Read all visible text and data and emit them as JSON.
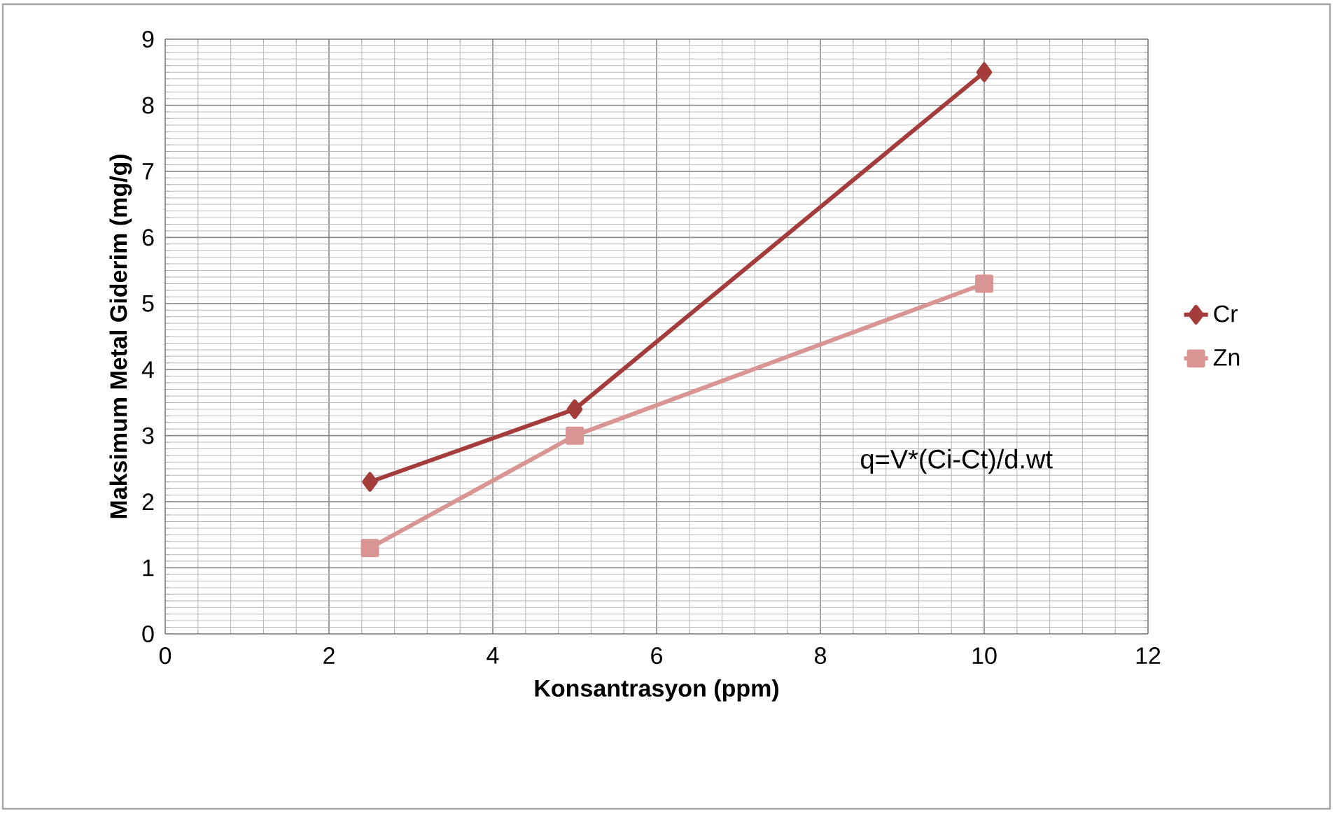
{
  "chart_data": {
    "type": "line",
    "xlabel": "Konsantrasyon (ppm)",
    "ylabel": "Maksimum Metal Giderim (mg/g)",
    "x": [
      2.5,
      5,
      10
    ],
    "series": [
      {
        "name": "Cr",
        "color": "#a33c3a",
        "marker": "diamond",
        "values": [
          2.3,
          3.4,
          8.5
        ]
      },
      {
        "name": "Zn",
        "color": "#d99594",
        "marker": "square",
        "values": [
          1.3,
          3.0,
          5.3
        ]
      }
    ],
    "xlim": [
      0,
      12
    ],
    "xticks": [
      0,
      2,
      4,
      6,
      8,
      10,
      12
    ],
    "ylim": [
      0,
      9
    ],
    "yticks": [
      0,
      1,
      2,
      3,
      4,
      5,
      6,
      7,
      8,
      9
    ],
    "grid": true,
    "legend": "right",
    "line_style": "solid",
    "annotations": [
      "q=V*(Ci-Ct)/d.wt"
    ]
  }
}
